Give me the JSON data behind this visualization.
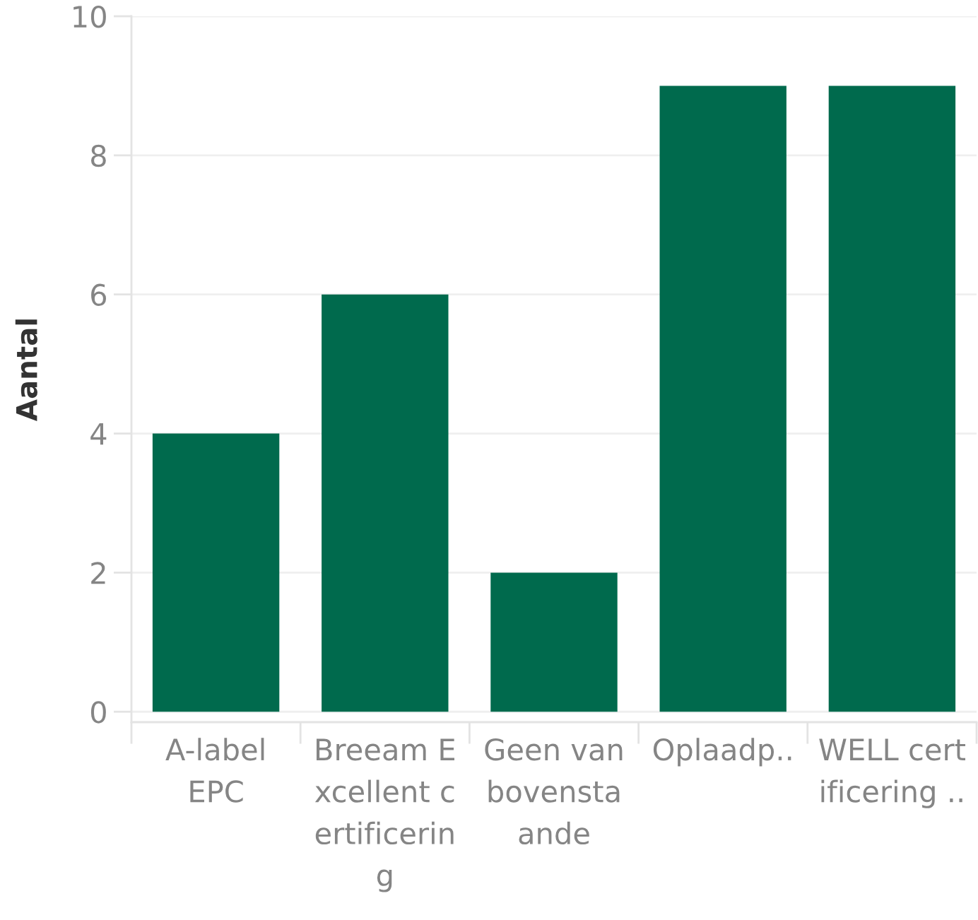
{
  "chart_data": {
    "type": "bar",
    "ylabel": "Aantal",
    "categories": [
      "A-label\nEPC",
      "Breeam E\nxcellent c\nertificerin\ng",
      "Geen van\nbovensta\nande",
      "Oplaadp..",
      "WELL cert\nificering .."
    ],
    "values": [
      4,
      6,
      2,
      9,
      9
    ],
    "color": "#006a4d",
    "ylim": [
      -0.15,
      10
    ],
    "yticks": [
      0,
      2,
      4,
      6,
      8,
      10
    ],
    "grid": "y"
  }
}
